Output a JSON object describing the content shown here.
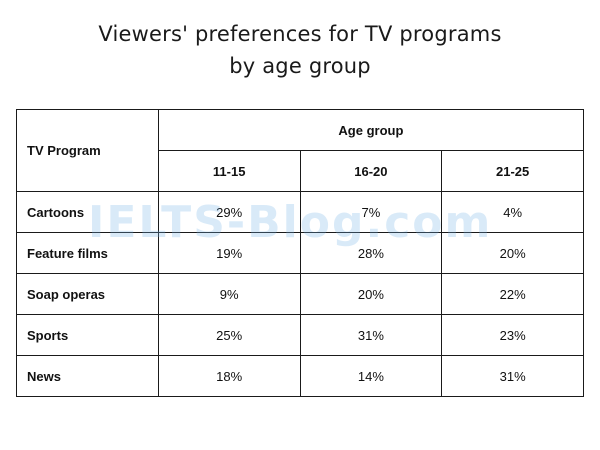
{
  "chart_data": {
    "type": "table",
    "title_line1": "Viewers' preferences for TV programs",
    "title_line2": "by age group",
    "row_header_label": "TV Program",
    "group_header_label": "Age group",
    "columns": [
      "11-15",
      "16-20",
      "21-25"
    ],
    "rows": [
      {
        "label": "Cartoons",
        "values": [
          "29%",
          "7%",
          "4%"
        ]
      },
      {
        "label": "Feature films",
        "values": [
          "19%",
          "28%",
          "20%"
        ]
      },
      {
        "label": "Soap operas",
        "values": [
          "9%",
          "20%",
          "22%"
        ]
      },
      {
        "label": "Sports",
        "values": [
          "25%",
          "31%",
          "23%"
        ]
      },
      {
        "label": "News",
        "values": [
          "18%",
          "14%",
          "31%"
        ]
      }
    ]
  },
  "watermark": "IELTS-Blog.com"
}
